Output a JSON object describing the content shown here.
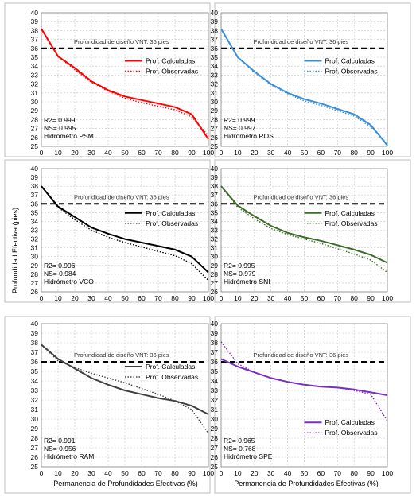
{
  "figure": {
    "ylabel": "Profundidad Efectiva (pies)",
    "xlabel_left": "Permanencia de Profundidades Efectivas (%)",
    "xlabel_right": "Permanencia de Profundidades Efectivas (%)"
  },
  "chart_data": [
    {
      "type": "line",
      "station": "Hidrómetro PSM",
      "color": "#ff0000",
      "x": [
        0,
        10,
        20,
        30,
        40,
        50,
        60,
        70,
        80,
        90,
        100
      ],
      "ylim": [
        25,
        40
      ],
      "xlim": [
        0,
        100
      ],
      "yticks": [
        25,
        26,
        27,
        28,
        29,
        30,
        31,
        32,
        33,
        34,
        35,
        36,
        37,
        38,
        39,
        40
      ],
      "xticks": [
        0,
        10,
        20,
        30,
        40,
        50,
        60,
        70,
        80,
        90,
        100
      ],
      "series": [
        {
          "name": "Prof. Calculadas",
          "style": "solid",
          "values": [
            38.2,
            35.1,
            33.8,
            32.3,
            31.3,
            30.6,
            30.2,
            29.8,
            29.4,
            28.6,
            25.8
          ]
        },
        {
          "name": "Prof. Observadas",
          "style": "dotted",
          "values": [
            38.2,
            35.1,
            33.6,
            32.2,
            31.2,
            30.4,
            29.9,
            29.5,
            29.1,
            28.3,
            26.2
          ]
        }
      ],
      "design_line": {
        "value": 36,
        "label": "Profundidad  de diseño VNT: 36 pies"
      },
      "stats": [
        "R2= 0.999",
        "NS= 0.995"
      ]
    },
    {
      "type": "line",
      "station": "Hidrómetro ROS",
      "color": "#3a8fd6",
      "x": [
        0,
        10,
        20,
        30,
        40,
        50,
        60,
        70,
        80,
        90,
        100
      ],
      "ylim": [
        25,
        40
      ],
      "xlim": [
        0,
        100
      ],
      "yticks": [
        25,
        26,
        27,
        28,
        29,
        30,
        31,
        32,
        33,
        34,
        35,
        36,
        37,
        38,
        39,
        40
      ],
      "xticks": [
        0,
        10,
        20,
        30,
        40,
        50,
        60,
        70,
        80,
        90,
        100
      ],
      "series": [
        {
          "name": "Prof. Calculadas",
          "style": "solid",
          "values": [
            38.2,
            35.0,
            33.4,
            32.0,
            31.0,
            30.3,
            29.8,
            29.2,
            28.6,
            27.4,
            25.1
          ]
        },
        {
          "name": "Prof. Observadas",
          "style": "dotted",
          "values": [
            38.2,
            35.0,
            33.3,
            31.9,
            30.9,
            30.1,
            29.6,
            29.0,
            28.4,
            27.2,
            25.3
          ]
        }
      ],
      "design_line": {
        "value": 36,
        "label": "Profundidad  de diseño VNT: 36 pies"
      },
      "stats": [
        "R2= 0.999",
        "NS= 0.997"
      ]
    },
    {
      "type": "line",
      "station": "Hidrómetro VCO",
      "color": "#000000",
      "x": [
        0,
        10,
        20,
        30,
        40,
        50,
        60,
        70,
        80,
        90,
        100
      ],
      "ylim": [
        26,
        40
      ],
      "xlim": [
        0,
        100
      ],
      "yticks": [
        26,
        27,
        28,
        29,
        30,
        31,
        32,
        33,
        34,
        35,
        36,
        37,
        38,
        39,
        40
      ],
      "xticks": [
        0,
        10,
        20,
        30,
        40,
        50,
        60,
        70,
        80,
        90,
        100
      ],
      "series": [
        {
          "name": "Prof. Calculadas",
          "style": "solid",
          "values": [
            38.0,
            35.7,
            34.5,
            33.3,
            32.6,
            32.0,
            31.6,
            31.2,
            30.8,
            30.0,
            28.2
          ]
        },
        {
          "name": "Prof. Observadas",
          "style": "dotted",
          "values": [
            38.0,
            35.6,
            34.2,
            33.0,
            32.2,
            31.6,
            31.1,
            30.6,
            30.1,
            29.2,
            27.3
          ]
        }
      ],
      "design_line": {
        "value": 36,
        "label": "Profundidad  de diseño VNT: 36 pies"
      },
      "stats": [
        "R2= 0.996",
        "NS= 0.984"
      ]
    },
    {
      "type": "line",
      "station": "Hidrómetro SNI",
      "color": "#3d6b2a",
      "x": [
        0,
        10,
        20,
        30,
        40,
        50,
        60,
        70,
        80,
        90,
        100
      ],
      "ylim": [
        26,
        40
      ],
      "xlim": [
        0,
        100
      ],
      "yticks": [
        26,
        27,
        28,
        29,
        30,
        31,
        32,
        33,
        34,
        35,
        36,
        37,
        38,
        39,
        40
      ],
      "xticks": [
        0,
        10,
        20,
        30,
        40,
        50,
        60,
        70,
        80,
        90,
        100
      ],
      "series": [
        {
          "name": "Prof. Calculadas",
          "style": "solid",
          "values": [
            38.0,
            35.8,
            34.6,
            33.5,
            32.7,
            32.2,
            31.8,
            31.3,
            30.8,
            30.2,
            29.3
          ]
        },
        {
          "name": "Prof. Observadas",
          "style": "dotted",
          "values": [
            38.0,
            35.6,
            34.3,
            33.2,
            32.5,
            32.0,
            31.5,
            30.9,
            30.3,
            29.6,
            28.2
          ]
        }
      ],
      "design_line": {
        "value": 36,
        "label": "Profundidad  de diseño VNT: 36 pies"
      },
      "stats": [
        "R2= 0.995",
        "NS= 0.979"
      ]
    },
    {
      "type": "line",
      "station": "Hidrómetro RAM",
      "color": "#404040",
      "x": [
        0,
        10,
        20,
        30,
        40,
        50,
        60,
        70,
        80,
        90,
        100
      ],
      "ylim": [
        25,
        40
      ],
      "xlim": [
        0,
        100
      ],
      "yticks": [
        25,
        26,
        27,
        28,
        29,
        30,
        31,
        32,
        33,
        34,
        35,
        36,
        37,
        38,
        39,
        40
      ],
      "xticks": [
        0,
        10,
        20,
        30,
        40,
        50,
        60,
        70,
        80,
        90,
        100
      ],
      "series": [
        {
          "name": "Prof. Calculadas",
          "style": "solid",
          "values": [
            37.8,
            36.3,
            35.3,
            34.3,
            33.6,
            33.0,
            32.6,
            32.2,
            31.9,
            31.4,
            30.5
          ]
        },
        {
          "name": "Prof. Observadas",
          "style": "dotted",
          "values": [
            37.8,
            36.1,
            35.4,
            34.8,
            34.3,
            33.8,
            33.2,
            32.6,
            31.9,
            31.0,
            28.5
          ]
        }
      ],
      "design_line": {
        "value": 36,
        "label": "Profundidad  de diseño VNT: 36 pies"
      },
      "stats": [
        "R2= 0.991",
        "NS= 0.956"
      ]
    },
    {
      "type": "line",
      "station": "Hidrómetro SPE",
      "color": "#7b2fbe",
      "x": [
        0,
        10,
        20,
        30,
        40,
        50,
        60,
        70,
        80,
        90,
        100
      ],
      "ylim": [
        25,
        40
      ],
      "xlim": [
        0,
        100
      ],
      "yticks": [
        25,
        26,
        27,
        28,
        29,
        30,
        31,
        32,
        33,
        34,
        35,
        36,
        37,
        38,
        39,
        40
      ],
      "xticks": [
        0,
        10,
        20,
        30,
        40,
        50,
        60,
        70,
        80,
        90,
        100
      ],
      "series": [
        {
          "name": "Prof. Calculadas",
          "style": "solid",
          "values": [
            36.3,
            35.5,
            34.9,
            34.3,
            33.9,
            33.6,
            33.4,
            33.3,
            33.1,
            32.8,
            32.5
          ]
        },
        {
          "name": "Prof. Observadas",
          "style": "dotted",
          "values": [
            38.1,
            35.8,
            34.9,
            34.3,
            33.9,
            33.6,
            33.4,
            33.3,
            33.0,
            32.6,
            29.8
          ]
        }
      ],
      "design_line": {
        "value": 36,
        "label": "Profundidad  de diseño VNT: 36 pies"
      },
      "stats": [
        "R2= 0.965",
        "NS= 0.768"
      ]
    }
  ]
}
